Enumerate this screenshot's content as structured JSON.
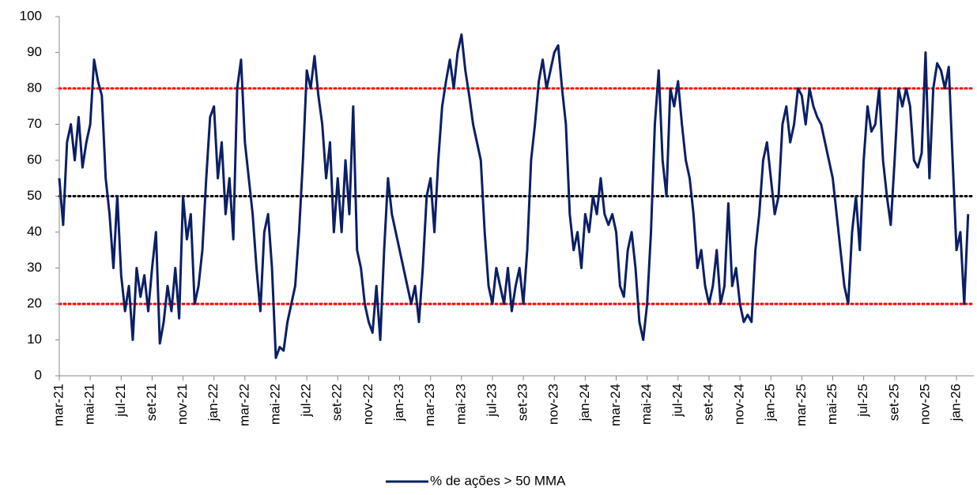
{
  "chart_data": {
    "type": "line",
    "categories": [
      "mar-21",
      null,
      null,
      null,
      null,
      null,
      null,
      null,
      "mai-21",
      null,
      null,
      null,
      null,
      null,
      null,
      null,
      "jul-21",
      null,
      null,
      null,
      null,
      null,
      null,
      null,
      "set-21",
      null,
      null,
      null,
      null,
      null,
      null,
      null,
      "nov-21",
      null,
      null,
      null,
      null,
      null,
      null,
      null,
      "jan-22",
      null,
      null,
      null,
      null,
      null,
      null,
      null,
      "mar-22",
      null,
      null,
      null,
      null,
      null,
      null,
      null,
      "mai-22",
      null,
      null,
      null,
      null,
      null,
      null,
      null,
      "jul-22",
      null,
      null,
      null,
      null,
      null,
      null,
      null,
      "set-22",
      null,
      null,
      null,
      null,
      null,
      null,
      null,
      "nov-22",
      null,
      null,
      null,
      null,
      null,
      null,
      null,
      "jan-23",
      null,
      null,
      null,
      null,
      null,
      null,
      null,
      "mar-23",
      null,
      null,
      null,
      null,
      null,
      null,
      null,
      "mai-23",
      null,
      null,
      null,
      null,
      null,
      null,
      null,
      "jul-23",
      null,
      null,
      null,
      null,
      null,
      null,
      null,
      "set-23",
      null,
      null,
      null,
      null,
      null,
      null,
      null,
      "nov-23",
      null,
      null,
      null,
      null,
      null,
      null,
      null,
      "jan-24",
      null,
      null,
      null,
      null,
      null,
      null,
      null,
      "mar-24",
      null,
      null,
      null,
      null,
      null,
      null,
      null,
      "mai-24",
      null,
      null,
      null,
      null,
      null,
      null,
      null,
      "jul-24",
      null,
      null,
      null,
      null,
      null,
      null,
      null,
      "set-24",
      null,
      null,
      null,
      null,
      null,
      null,
      null,
      "nov-24",
      null,
      null,
      null,
      null,
      null,
      null,
      null,
      "jan-25",
      null,
      null,
      null,
      null,
      null,
      null,
      null,
      "mar-25",
      null,
      null,
      null,
      null,
      null,
      null,
      null,
      "mai-25",
      null,
      null,
      null,
      null,
      null,
      null,
      null,
      "jul-25",
      null,
      null,
      null,
      null,
      null,
      null,
      null,
      "set-25",
      null,
      null,
      null,
      null,
      null,
      null,
      null,
      "nov-25",
      null,
      null,
      null,
      null,
      null,
      null,
      null,
      "jan-26",
      null,
      null,
      null
    ],
    "series": [
      {
        "name": "% de ações > 50 MMA",
        "color": "#0b1f65",
        "values": [
          55,
          42,
          65,
          70,
          60,
          72,
          58,
          65,
          70,
          88,
          82,
          78,
          55,
          45,
          30,
          50,
          28,
          18,
          25,
          10,
          30,
          22,
          28,
          18,
          30,
          40,
          9,
          15,
          25,
          18,
          30,
          16,
          50,
          38,
          45,
          20,
          25,
          35,
          55,
          72,
          75,
          55,
          65,
          45,
          55,
          38,
          80,
          88,
          65,
          55,
          45,
          30,
          18,
          40,
          45,
          30,
          5,
          8,
          7,
          15,
          20,
          25,
          40,
          60,
          85,
          80,
          89,
          78,
          70,
          55,
          65,
          40,
          55,
          40,
          60,
          45,
          75,
          35,
          30,
          20,
          15,
          12,
          25,
          10,
          35,
          55,
          45,
          40,
          35,
          30,
          25,
          20,
          25,
          15,
          30,
          50,
          55,
          40,
          60,
          75,
          82,
          88,
          80,
          90,
          95,
          85,
          78,
          70,
          65,
          60,
          40,
          25,
          20,
          30,
          25,
          20,
          30,
          18,
          25,
          30,
          20,
          35,
          60,
          70,
          82,
          88,
          80,
          85,
          90,
          92,
          80,
          70,
          45,
          35,
          40,
          30,
          45,
          40,
          50,
          45,
          55,
          45,
          42,
          45,
          40,
          25,
          22,
          35,
          40,
          30,
          15,
          10,
          20,
          40,
          70,
          85,
          60,
          50,
          80,
          75,
          82,
          70,
          60,
          55,
          45,
          30,
          35,
          25,
          20,
          25,
          35,
          20,
          25,
          48,
          25,
          30,
          20,
          15,
          17,
          15,
          35,
          45,
          60,
          65,
          55,
          45,
          50,
          70,
          75,
          65,
          70,
          80,
          78,
          70,
          80,
          75,
          72,
          70,
          65,
          60,
          55,
          45,
          35,
          25,
          20,
          40,
          50,
          35,
          60,
          75,
          68,
          70,
          80,
          60,
          50,
          42,
          60,
          80,
          75,
          80,
          75,
          60,
          58,
          62,
          90,
          55,
          80,
          87,
          85,
          80,
          86,
          60,
          35,
          40,
          20,
          45
        ]
      }
    ],
    "ylim": [
      0,
      100
    ],
    "yticks": [
      0,
      10,
      20,
      30,
      40,
      50,
      60,
      70,
      80,
      90,
      100
    ],
    "reference_lines": [
      {
        "value": 80,
        "color": "#ff0000"
      },
      {
        "value": 50,
        "color": "#000000"
      },
      {
        "value": 20,
        "color": "#ff0000"
      }
    ],
    "legend": "bottom"
  }
}
